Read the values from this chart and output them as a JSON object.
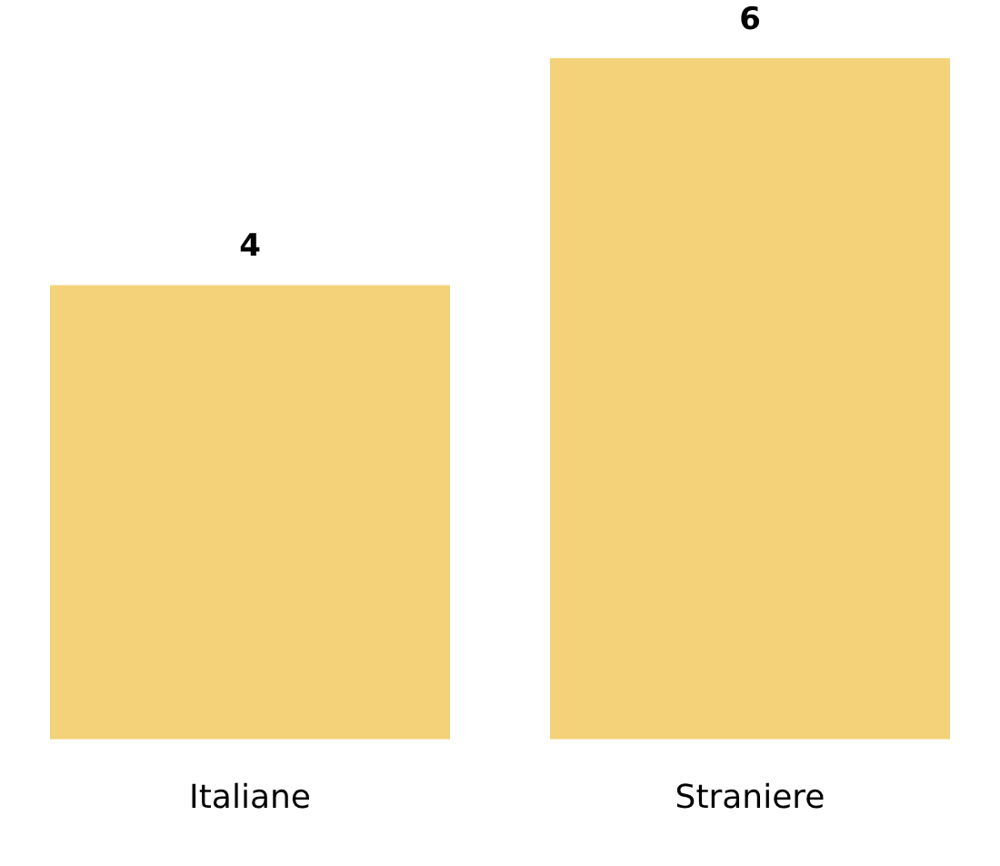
{
  "chart_data": {
    "type": "bar",
    "categories": [
      "Italiane",
      "Straniere"
    ],
    "values": [
      4,
      6
    ],
    "color": "#f4d27a",
    "ylim": [
      0,
      6
    ],
    "data_labels": true,
    "tick_labels": "x",
    "grid": false,
    "legend": false
  }
}
